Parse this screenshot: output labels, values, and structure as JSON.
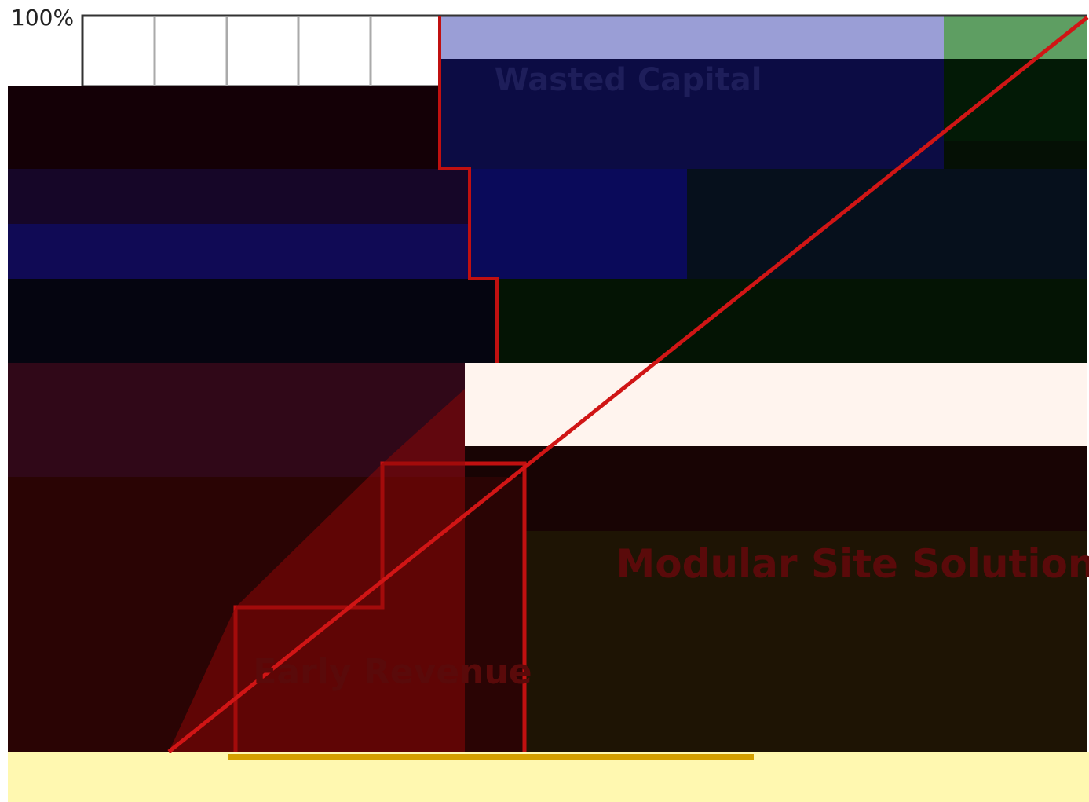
{
  "axis_label": "100%",
  "labels": {
    "wasted_capital": "Wasted Capital",
    "modular_site_solution": "Modular Site Solution",
    "early_revenue": "Early Revenue"
  }
}
